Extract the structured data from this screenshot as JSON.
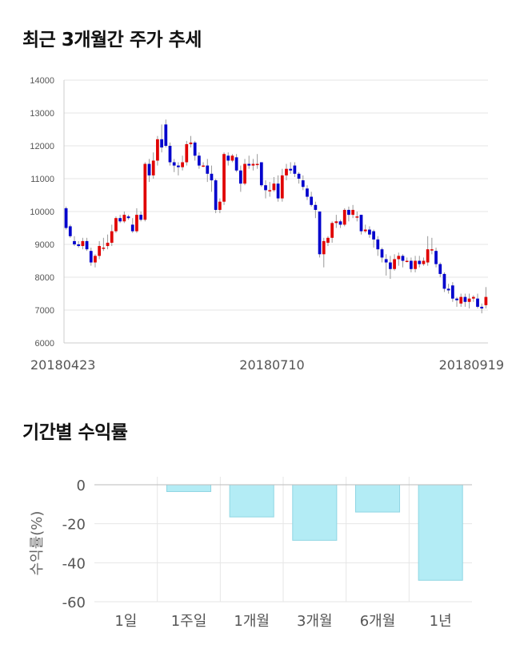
{
  "titles": {
    "trend": "최근 3개월간 주가 추세",
    "returns": "기간별 수익률"
  },
  "colors": {
    "up": "#e00000",
    "down": "#0000cc",
    "bar_fill": "#b3ecf5",
    "bar_stroke": "#8fd6e3",
    "grid": "#e6e6e6"
  },
  "chart_data": [
    {
      "type": "candlestick",
      "title": "최근 3개월간 주가 추세",
      "ylim": [
        6000,
        14000
      ],
      "y_ticks": [
        6000,
        7000,
        8000,
        9000,
        10000,
        11000,
        12000,
        13000,
        14000
      ],
      "x_tick_labels": [
        "20180423",
        "20180710",
        "20180919"
      ],
      "grid": true,
      "candles": [
        [
          10100,
          9500,
          10150,
          9450
        ],
        [
          9550,
          9250,
          9600,
          9200
        ],
        [
          9100,
          9000,
          9250,
          8950
        ],
        [
          9000,
          8950,
          9100,
          8900
        ],
        [
          8950,
          9100,
          9200,
          8850
        ],
        [
          9100,
          8850,
          9200,
          8800
        ],
        [
          8800,
          8450,
          8900,
          8350
        ],
        [
          8450,
          8650,
          8700,
          8300
        ],
        [
          8650,
          8950,
          9100,
          8550
        ],
        [
          8900,
          8900,
          9200,
          8800
        ],
        [
          8950,
          9050,
          9300,
          8850
        ],
        [
          9050,
          9400,
          9600,
          8950
        ],
        [
          9400,
          9800,
          9850,
          9350
        ],
        [
          9800,
          9700,
          9900,
          9650
        ],
        [
          9700,
          9900,
          10000,
          9650
        ],
        [
          9850,
          9800,
          9900,
          9750
        ],
        [
          9600,
          9400,
          9800,
          9350
        ],
        [
          9400,
          9900,
          10100,
          9350
        ],
        [
          9900,
          9750,
          10000,
          9700
        ],
        [
          9750,
          11450,
          11500,
          9700
        ],
        [
          11450,
          11100,
          11600,
          10900
        ],
        [
          11100,
          11550,
          11800,
          11000
        ],
        [
          11550,
          12200,
          12300,
          11400
        ],
        [
          12200,
          11950,
          12650,
          11800
        ],
        [
          12650,
          12000,
          12800,
          11950
        ],
        [
          12000,
          11500,
          12100,
          11400
        ],
        [
          11500,
          11400,
          11600,
          11200
        ],
        [
          11400,
          11350,
          11500,
          11100
        ],
        [
          11350,
          11500,
          11700,
          11250
        ],
        [
          11500,
          12050,
          12150,
          11400
        ],
        [
          12050,
          12100,
          12300,
          11950
        ],
        [
          12100,
          11700,
          12150,
          11550
        ],
        [
          11700,
          11400,
          11800,
          11300
        ],
        [
          11400,
          11400,
          11500,
          11350
        ],
        [
          11400,
          11150,
          11600,
          10900
        ],
        [
          11150,
          10950,
          11400,
          10600
        ],
        [
          10950,
          10050,
          11000,
          9950
        ],
        [
          10050,
          10300,
          10400,
          9950
        ],
        [
          10300,
          11750,
          11800,
          10200
        ],
        [
          11700,
          11550,
          11800,
          11400
        ],
        [
          11550,
          11700,
          11750,
          11500
        ],
        [
          11650,
          11250,
          11750,
          11200
        ],
        [
          11250,
          10850,
          11400,
          10600
        ],
        [
          10850,
          11450,
          11600,
          10800
        ],
        [
          11450,
          11400,
          11700,
          11300
        ],
        [
          11400,
          11450,
          11600,
          11250
        ],
        [
          11450,
          11450,
          11750,
          11300
        ],
        [
          11500,
          10800,
          11500,
          10750
        ],
        [
          10800,
          10650,
          10950,
          10400
        ],
        [
          10650,
          10650,
          10900,
          10450
        ],
        [
          10650,
          10850,
          11050,
          10600
        ],
        [
          10850,
          10400,
          11100,
          10300
        ],
        [
          10400,
          11100,
          11300,
          10300
        ],
        [
          11100,
          11300,
          11450,
          10950
        ],
        [
          11300,
          11250,
          11500,
          11150
        ],
        [
          11400,
          11150,
          11500,
          11050
        ],
        [
          11150,
          11000,
          11200,
          10850
        ],
        [
          10950,
          10750,
          11100,
          10650
        ],
        [
          10700,
          10450,
          10800,
          10350
        ],
        [
          10450,
          10200,
          10600,
          10150
        ],
        [
          10200,
          10050,
          10300,
          9800
        ],
        [
          10000,
          8700,
          10000,
          8600
        ],
        [
          8700,
          9100,
          9200,
          8300
        ],
        [
          9050,
          9200,
          9250,
          8950
        ],
        [
          9200,
          9650,
          9700,
          9050
        ],
        [
          9650,
          9700,
          9900,
          9500
        ],
        [
          9700,
          9600,
          9750,
          9500
        ],
        [
          9600,
          10050,
          10100,
          9550
        ],
        [
          10050,
          9900,
          10150,
          9700
        ],
        [
          9900,
          10050,
          10200,
          9800
        ],
        [
          9850,
          9850,
          10000,
          9700
        ],
        [
          9900,
          9400,
          9900,
          9300
        ],
        [
          9400,
          9450,
          9600,
          9350
        ],
        [
          9450,
          9300,
          9550,
          9200
        ],
        [
          9400,
          9150,
          9450,
          8900
        ],
        [
          9150,
          8850,
          9250,
          8650
        ],
        [
          8850,
          8600,
          8900,
          8450
        ],
        [
          8550,
          8450,
          8700,
          8050
        ],
        [
          8450,
          8250,
          8650,
          7950
        ],
        [
          8250,
          8550,
          8700,
          8200
        ],
        [
          8550,
          8650,
          8750,
          8350
        ],
        [
          8650,
          8500,
          8700,
          8300
        ],
        [
          8500,
          8500,
          8600,
          8450
        ],
        [
          8500,
          8250,
          8600,
          8150
        ],
        [
          8250,
          8500,
          8650,
          8150
        ],
        [
          8500,
          8400,
          8650,
          8300
        ],
        [
          8400,
          8500,
          8600,
          8350
        ],
        [
          8450,
          8850,
          9250,
          8350
        ],
        [
          8850,
          8850,
          9200,
          8700
        ],
        [
          8800,
          8400,
          8900,
          8300
        ],
        [
          8400,
          8100,
          8450,
          8000
        ],
        [
          8100,
          7650,
          8150,
          7550
        ],
        [
          7650,
          7600,
          7800,
          7500
        ],
        [
          7750,
          7350,
          7850,
          7250
        ],
        [
          7350,
          7300,
          7400,
          7100
        ],
        [
          7200,
          7400,
          7500,
          7100
        ],
        [
          7400,
          7250,
          7500,
          7100
        ],
        [
          7250,
          7350,
          7500,
          7050
        ],
        [
          7350,
          7400,
          7450,
          7250
        ],
        [
          7350,
          7100,
          7500,
          7050
        ],
        [
          7100,
          7050,
          7200,
          6900
        ],
        [
          7150,
          7400,
          7700,
          7050
        ]
      ]
    },
    {
      "type": "bar",
      "title": "기간별 수익률",
      "ylabel": "수익률(%)",
      "categories": [
        "1일",
        "1주일",
        "1개월",
        "3개월",
        "6개월",
        "1년"
      ],
      "values": [
        0,
        -3.5,
        -16.5,
        -28.5,
        -14,
        -49
      ],
      "ylim": [
        -60,
        0
      ],
      "y_ticks": [
        0,
        -20,
        -40,
        -60
      ],
      "grid": true
    }
  ]
}
